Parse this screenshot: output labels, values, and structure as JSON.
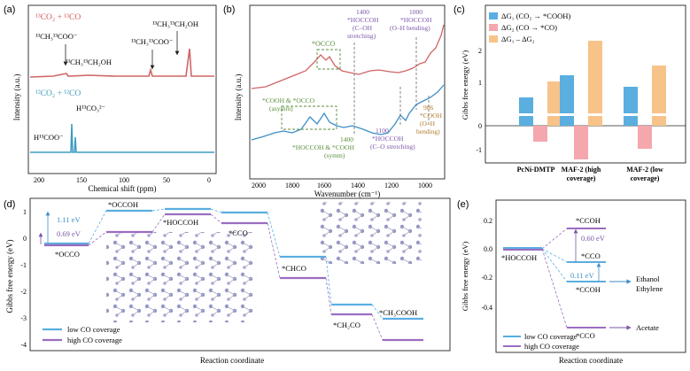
{
  "panel_a": {
    "label": "(a)",
    "title_top": "¹³CO₂ + ¹³CO",
    "title_bottom": "¹²CO₂ + ¹²CO",
    "anno_acetate": "¹³CH₃¹³COO⁻",
    "anno_ethanol_mid": "¹³CH₃¹³CH₂OH",
    "anno_acetate2": "¹³CH₃¹³COO⁻",
    "anno_ethanol_right": "¹³CH₃¹³CH₂OH",
    "anno_formate": "H¹³COO⁻",
    "anno_carbonate": "H¹³CO₃²⁻",
    "ylabel": "Intensity (a.u.)",
    "xlabel": "Chemical shift (ppm)",
    "xticks": [
      "200",
      "150",
      "100",
      "50",
      "0"
    ]
  },
  "panel_b": {
    "label": "(b)",
    "ylabel": "Intensity (a.u.)",
    "xlabel": "Wavenumber (cm⁻¹)",
    "xticks": [
      "2000",
      "1800",
      "1600",
      "1400",
      "1200",
      "1000"
    ],
    "anno_occo": "*OCCO",
    "anno_1400_top": "1400",
    "anno_hoccoh_top": "*HOCCOH",
    "anno_coh_stretch": "(C–OH",
    "anno_stretching": "stretching)",
    "anno_1000": "1000",
    "anno_hoccoh_right": "*HOCCOH",
    "anno_oh_bending": "(O–H bending)",
    "anno_cooh_occo": "*COOH & *OCCO",
    "anno_asymm": "(asymm)",
    "anno_1400_bottom": "1400",
    "anno_hoccoh_cooh": "*HOCCOH & *COOH",
    "anno_symm": "(symm)",
    "anno_1100": "1100",
    "anno_hoccoh_low": "*HOCCOH",
    "anno_co_stretch": "(C–O stretching)",
    "anno_906": "906",
    "anno_cooh_906": "*COOH",
    "anno_oh_906": "(O–H",
    "anno_bending_906": "bending)"
  },
  "panel_c": {
    "label": "(c)",
    "ylabel": "Gibbs free energy (eV)",
    "legend": [
      {
        "label": "ΔG₁ (CO₂ → *COOH)",
        "color": "#5aaee0"
      },
      {
        "label": "ΔG₂ (CO → *CO)",
        "color": "#f4a7ad"
      },
      {
        "label": "ΔG₁ – ΔG₂",
        "color": "#f8c389"
      }
    ],
    "categories": [
      "PcNi-DMTP",
      "MAF-2 (high coverage)",
      "MAF-2 (low coverage)"
    ],
    "cat_line1": [
      "PcNi-DMTP",
      "MAF-2 (high",
      "MAF-2 (low"
    ],
    "cat_line2": [
      "",
      "coverage)",
      "coverage)"
    ],
    "yticks": [
      "2",
      "1",
      "0",
      "-1"
    ]
  },
  "panel_d": {
    "label": "(d)",
    "ylabel": "Gibbs free energy (eV)",
    "xlabel": "Reaction coordinate",
    "yticks": [
      "1",
      "0",
      "-1",
      "-2",
      "-3",
      "-4"
    ],
    "gap_low": "1.11 eV",
    "gap_high": "0.69 eV",
    "species": [
      "*OCCO",
      "*OCCOH",
      "*HOCCOH",
      "*CCO",
      "*CHCO",
      "*CH₂CO",
      "*CH₃COOH"
    ],
    "legend_low": "low CO coverage",
    "legend_high": "high CO coverage",
    "color_low": "#5aaee0",
    "color_high": "#9b6cc0"
  },
  "panel_e": {
    "label": "(e)",
    "ylabel": "Gibbs free energy (eV)",
    "xlabel": "Reaction coordinate",
    "yticks": [
      "0.2",
      "0.0",
      "-0.2",
      "-0.4"
    ],
    "start": "*HOCCOH",
    "cooh": "*CCOH",
    "gap_high": "0.60 eV",
    "cco_low": "*CCO",
    "gap_low": "0.11 eV",
    "ccoh_low": "*CCOH",
    "cco_high": "*CCO",
    "product_1": "Ethanol",
    "product_2": "Ethylene",
    "product_3": "Acetate",
    "legend_low": "low CO coverage",
    "legend_high": "high CO coverage"
  }
}
